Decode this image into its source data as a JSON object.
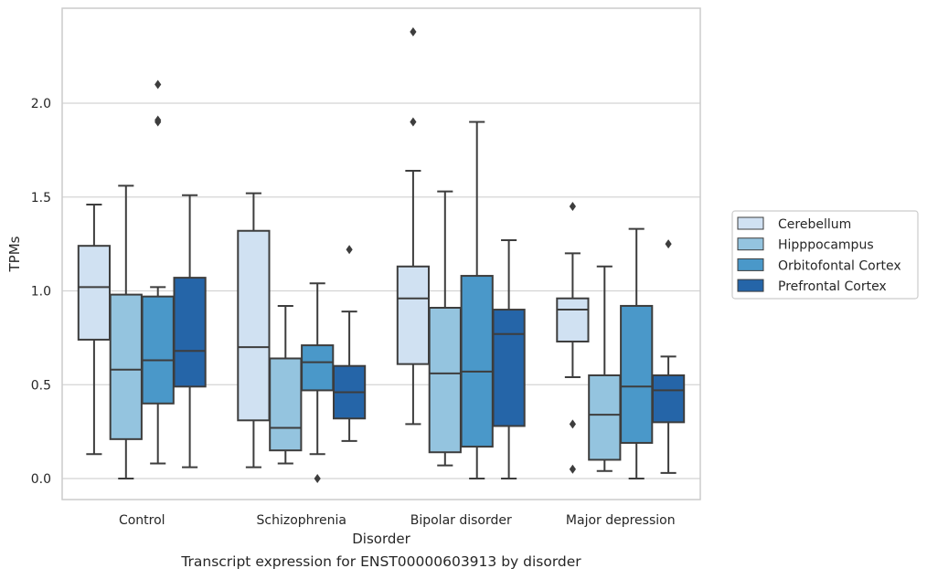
{
  "caption": "Transcript expression for ENST00000603913 by disorder",
  "chart_data": {
    "type": "box",
    "title": "",
    "xlabel": "Disorder",
    "ylabel": "TPMs",
    "ylim": [
      -0.12,
      2.53
    ],
    "yticks": [
      "0.0",
      "0.5",
      "1.0",
      "1.5",
      "2.0"
    ],
    "grid": "horizontal",
    "legend_position": "right",
    "categories": [
      "Control",
      "Schizophrenia",
      "Bipolar disorder",
      "Major depression"
    ],
    "series": [
      {
        "name": "Cerebellum",
        "color": "#d0e1f2",
        "boxes": [
          {
            "whislo": 0.13,
            "q1": 0.74,
            "med": 1.02,
            "q3": 1.24,
            "whishi": 1.46,
            "fliers": []
          },
          {
            "whislo": 0.06,
            "q1": 0.31,
            "med": 0.7,
            "q3": 1.32,
            "whishi": 1.52,
            "fliers": []
          },
          {
            "whislo": 0.29,
            "q1": 0.61,
            "med": 0.96,
            "q3": 1.13,
            "whishi": 1.64,
            "fliers": [
              1.9,
              2.38
            ]
          },
          {
            "whislo": 0.54,
            "q1": 0.73,
            "med": 0.9,
            "q3": 0.96,
            "whishi": 1.2,
            "fliers": [
              0.05,
              0.29,
              1.45
            ]
          }
        ]
      },
      {
        "name": "Hipppocampus",
        "color": "#94c4df",
        "boxes": [
          {
            "whislo": 0.0,
            "q1": 0.21,
            "med": 0.58,
            "q3": 0.98,
            "whishi": 1.56,
            "fliers": []
          },
          {
            "whislo": 0.08,
            "q1": 0.15,
            "med": 0.27,
            "q3": 0.64,
            "whishi": 0.92,
            "fliers": []
          },
          {
            "whislo": 0.07,
            "q1": 0.14,
            "med": 0.56,
            "q3": 0.91,
            "whishi": 1.53,
            "fliers": []
          },
          {
            "whislo": 0.04,
            "q1": 0.1,
            "med": 0.34,
            "q3": 0.55,
            "whishi": 1.13,
            "fliers": []
          }
        ]
      },
      {
        "name": "Orbitofontal Cortex",
        "color": "#4a98c9",
        "boxes": [
          {
            "whislo": 0.08,
            "q1": 0.4,
            "med": 0.63,
            "q3": 0.97,
            "whishi": 1.02,
            "fliers": [
              1.9,
              1.91,
              2.1
            ]
          },
          {
            "whislo": 0.13,
            "q1": 0.47,
            "med": 0.62,
            "q3": 0.71,
            "whishi": 1.04,
            "fliers": [
              0.0
            ]
          },
          {
            "whislo": 0.0,
            "q1": 0.17,
            "med": 0.57,
            "q3": 1.08,
            "whishi": 1.9,
            "fliers": []
          },
          {
            "whislo": 0.0,
            "q1": 0.19,
            "med": 0.49,
            "q3": 0.92,
            "whishi": 1.33,
            "fliers": []
          }
        ]
      },
      {
        "name": "Prefrontal Cortex",
        "color": "#2565a8",
        "boxes": [
          {
            "whislo": 0.06,
            "q1": 0.49,
            "med": 0.68,
            "q3": 1.07,
            "whishi": 1.51,
            "fliers": []
          },
          {
            "whislo": 0.2,
            "q1": 0.32,
            "med": 0.46,
            "q3": 0.6,
            "whishi": 0.89,
            "fliers": [
              1.22
            ]
          },
          {
            "whislo": 0.0,
            "q1": 0.28,
            "med": 0.77,
            "q3": 0.9,
            "whishi": 1.27,
            "fliers": []
          },
          {
            "whislo": 0.03,
            "q1": 0.3,
            "med": 0.47,
            "q3": 0.55,
            "whishi": 0.65,
            "fliers": [
              1.25
            ]
          }
        ]
      }
    ]
  }
}
